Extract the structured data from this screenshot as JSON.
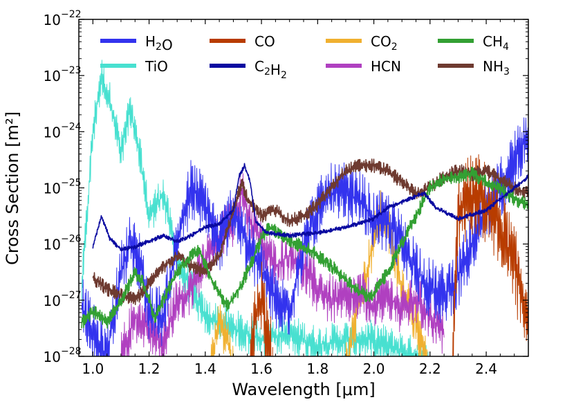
{
  "chart_data": {
    "type": "line",
    "xlabel": "Wavelength [μm]",
    "ylabel": "Cross Section [m²]",
    "xlim": [
      0.95,
      2.55
    ],
    "ylim_log10": [
      -28,
      -22
    ],
    "x_ticks": [
      1.0,
      1.2,
      1.4,
      1.6,
      1.8,
      2.0,
      2.2,
      2.4
    ],
    "x_tick_labels": [
      "1.0",
      "1.2",
      "1.4",
      "1.6",
      "1.8",
      "2.0",
      "2.2",
      "2.4"
    ],
    "y_ticks": [
      {
        "base": "10",
        "exp": "−28"
      },
      {
        "base": "10",
        "exp": "−27"
      },
      {
        "base": "10",
        "exp": "−26"
      },
      {
        "base": "10",
        "exp": "−25"
      },
      {
        "base": "10",
        "exp": "−24"
      },
      {
        "base": "10",
        "exp": "−23"
      },
      {
        "base": "10",
        "exp": "−22"
      }
    ],
    "legend_position": "top",
    "series": [
      {
        "name": "H2O",
        "label_main": "H",
        "label_sub": "2",
        "label_tail": "O",
        "color": "#3333ee",
        "noise": 1.1,
        "points": [
          [
            0.96,
            -27.1
          ],
          [
            1.0,
            -27.6
          ],
          [
            1.05,
            -28.0
          ],
          [
            1.1,
            -26.5
          ],
          [
            1.13,
            -26.0
          ],
          [
            1.17,
            -26.3
          ],
          [
            1.2,
            -27.2
          ],
          [
            1.25,
            -27.3
          ],
          [
            1.3,
            -26.0
          ],
          [
            1.35,
            -25.0
          ],
          [
            1.4,
            -25.3
          ],
          [
            1.45,
            -26.0
          ],
          [
            1.5,
            -25.4
          ],
          [
            1.55,
            -26.0
          ],
          [
            1.6,
            -26.5
          ],
          [
            1.65,
            -27.0
          ],
          [
            1.7,
            -27.2
          ],
          [
            1.75,
            -26.0
          ],
          [
            1.8,
            -25.4
          ],
          [
            1.85,
            -25.1
          ],
          [
            1.9,
            -25.1
          ],
          [
            1.95,
            -25.2
          ],
          [
            2.0,
            -25.6
          ],
          [
            2.05,
            -25.6
          ],
          [
            2.1,
            -26.0
          ],
          [
            2.15,
            -26.4
          ],
          [
            2.2,
            -26.8
          ],
          [
            2.25,
            -26.9
          ],
          [
            2.3,
            -26.6
          ],
          [
            2.35,
            -26.0
          ],
          [
            2.4,
            -25.5
          ],
          [
            2.45,
            -25.0
          ],
          [
            2.5,
            -24.5
          ],
          [
            2.55,
            -24.0
          ]
        ]
      },
      {
        "name": "TiO",
        "label_main": "TiO",
        "label_sub": "",
        "label_tail": "",
        "color": "#48e0d0",
        "noise": 0.7,
        "points": [
          [
            0.96,
            -26.8
          ],
          [
            1.0,
            -24.0
          ],
          [
            1.03,
            -23.0
          ],
          [
            1.07,
            -23.6
          ],
          [
            1.1,
            -24.4
          ],
          [
            1.13,
            -23.6
          ],
          [
            1.17,
            -24.5
          ],
          [
            1.2,
            -25.5
          ],
          [
            1.25,
            -25.1
          ],
          [
            1.3,
            -26.3
          ],
          [
            1.35,
            -26.8
          ],
          [
            1.4,
            -27.3
          ],
          [
            1.5,
            -27.5
          ],
          [
            1.6,
            -27.7
          ],
          [
            1.7,
            -27.6
          ],
          [
            1.8,
            -27.8
          ],
          [
            1.9,
            -27.7
          ],
          [
            2.0,
            -27.7
          ],
          [
            2.1,
            -27.9
          ],
          [
            2.2,
            -28.1
          ]
        ]
      },
      {
        "name": "CO",
        "label_main": "CO",
        "label_sub": "",
        "label_tail": "",
        "color": "#b83c00",
        "noise": 1.5,
        "points": [
          [
            1.56,
            -28.2
          ],
          [
            1.58,
            -27.3
          ],
          [
            1.6,
            -27.0
          ],
          [
            1.62,
            -27.6
          ],
          [
            1.64,
            -28.2
          ]
        ],
        "segment2": [
          [
            2.28,
            -28.2
          ],
          [
            2.3,
            -25.4
          ],
          [
            2.33,
            -25.2
          ],
          [
            2.37,
            -25.1
          ],
          [
            2.4,
            -25.3
          ],
          [
            2.43,
            -25.5
          ],
          [
            2.46,
            -25.8
          ],
          [
            2.5,
            -26.4
          ],
          [
            2.53,
            -27.0
          ],
          [
            2.55,
            -27.3
          ]
        ]
      },
      {
        "name": "C2H2",
        "label_main": "C",
        "label_sub": "2",
        "label_tail": "H",
        "label_sub2": "2",
        "color": "#0a0aa0",
        "noise": 0.08,
        "points": [
          [
            1.0,
            -26.05
          ],
          [
            1.03,
            -25.5
          ],
          [
            1.06,
            -25.9
          ],
          [
            1.1,
            -26.1
          ],
          [
            1.15,
            -26.05
          ],
          [
            1.2,
            -25.95
          ],
          [
            1.25,
            -25.85
          ],
          [
            1.3,
            -25.95
          ],
          [
            1.35,
            -25.85
          ],
          [
            1.4,
            -25.7
          ],
          [
            1.45,
            -25.65
          ],
          [
            1.5,
            -25.4
          ],
          [
            1.52,
            -24.8
          ],
          [
            1.54,
            -24.6
          ],
          [
            1.56,
            -24.9
          ],
          [
            1.58,
            -25.6
          ],
          [
            1.62,
            -25.8
          ],
          [
            1.7,
            -25.85
          ],
          [
            1.8,
            -25.8
          ],
          [
            1.9,
            -25.7
          ],
          [
            2.0,
            -25.55
          ],
          [
            2.05,
            -25.35
          ],
          [
            2.1,
            -25.25
          ],
          [
            2.15,
            -25.15
          ],
          [
            2.18,
            -25.1
          ],
          [
            2.22,
            -25.35
          ],
          [
            2.3,
            -25.55
          ],
          [
            2.4,
            -25.4
          ],
          [
            2.45,
            -25.2
          ],
          [
            2.5,
            -25.0
          ],
          [
            2.55,
            -24.8
          ]
        ]
      },
      {
        "name": "CO2",
        "label_main": "CO",
        "label_sub": "2",
        "label_tail": "",
        "color": "#f0b030",
        "noise": 0.9,
        "points": [
          [
            1.42,
            -28.2
          ],
          [
            1.45,
            -27.3
          ],
          [
            1.48,
            -27.8
          ],
          [
            1.5,
            -28.2
          ]
        ],
        "segment2": [
          [
            1.9,
            -28.2
          ],
          [
            1.95,
            -27.0
          ],
          [
            1.98,
            -26.4
          ],
          [
            2.0,
            -25.9
          ],
          [
            2.03,
            -25.4
          ],
          [
            2.06,
            -25.9
          ],
          [
            2.09,
            -26.6
          ],
          [
            2.12,
            -27.0
          ],
          [
            2.15,
            -27.4
          ],
          [
            2.19,
            -28.2
          ]
        ]
      },
      {
        "name": "HCN",
        "label_main": "HCN",
        "label_sub": "",
        "label_tail": "",
        "color": "#b040c0",
        "noise": 0.9,
        "points": [
          [
            1.1,
            -28.0
          ],
          [
            1.15,
            -27.3
          ],
          [
            1.2,
            -27.5
          ],
          [
            1.25,
            -27.8
          ],
          [
            1.3,
            -27.0
          ],
          [
            1.35,
            -26.8
          ],
          [
            1.4,
            -26.3
          ],
          [
            1.45,
            -25.9
          ],
          [
            1.5,
            -25.6
          ],
          [
            1.53,
            -25.1
          ],
          [
            1.56,
            -25.6
          ],
          [
            1.6,
            -26.0
          ],
          [
            1.65,
            -26.4
          ],
          [
            1.7,
            -26.2
          ],
          [
            1.75,
            -26.4
          ],
          [
            1.8,
            -26.8
          ],
          [
            1.85,
            -27.0
          ],
          [
            1.9,
            -27.0
          ],
          [
            1.95,
            -26.9
          ],
          [
            2.0,
            -27.1
          ],
          [
            2.05,
            -26.9
          ],
          [
            2.1,
            -27.2
          ],
          [
            2.15,
            -27.0
          ],
          [
            2.2,
            -27.3
          ],
          [
            2.25,
            -27.6
          ]
        ]
      },
      {
        "name": "CH4",
        "label_main": "CH",
        "label_sub": "4",
        "label_tail": "",
        "color": "#33a033",
        "noise": 0.25,
        "points": [
          [
            0.96,
            -27.4
          ],
          [
            1.0,
            -27.2
          ],
          [
            1.05,
            -27.4
          ],
          [
            1.1,
            -27.0
          ],
          [
            1.15,
            -26.5
          ],
          [
            1.18,
            -26.7
          ],
          [
            1.22,
            -27.3
          ],
          [
            1.25,
            -27.0
          ],
          [
            1.3,
            -26.5
          ],
          [
            1.35,
            -26.2
          ],
          [
            1.38,
            -26.1
          ],
          [
            1.42,
            -26.6
          ],
          [
            1.45,
            -26.9
          ],
          [
            1.48,
            -27.1
          ],
          [
            1.52,
            -26.8
          ],
          [
            1.56,
            -26.4
          ],
          [
            1.6,
            -25.9
          ],
          [
            1.63,
            -25.7
          ],
          [
            1.66,
            -25.8
          ],
          [
            1.7,
            -25.95
          ],
          [
            1.75,
            -26.05
          ],
          [
            1.8,
            -26.2
          ],
          [
            1.85,
            -26.4
          ],
          [
            1.9,
            -26.65
          ],
          [
            1.95,
            -26.85
          ],
          [
            1.99,
            -26.95
          ],
          [
            2.05,
            -26.5
          ],
          [
            2.1,
            -26.0
          ],
          [
            2.15,
            -25.5
          ],
          [
            2.2,
            -25.0
          ],
          [
            2.25,
            -24.85
          ],
          [
            2.3,
            -24.8
          ],
          [
            2.35,
            -24.75
          ],
          [
            2.4,
            -24.9
          ],
          [
            2.45,
            -25.0
          ],
          [
            2.5,
            -25.2
          ],
          [
            2.55,
            -25.3
          ]
        ]
      },
      {
        "name": "NH3",
        "label_main": "NH",
        "label_sub": "3",
        "label_tail": "",
        "color": "#6e3a30",
        "noise": 0.25,
        "points": [
          [
            1.0,
            -26.6
          ],
          [
            1.05,
            -26.8
          ],
          [
            1.1,
            -26.9
          ],
          [
            1.15,
            -27.0
          ],
          [
            1.2,
            -26.7
          ],
          [
            1.25,
            -26.4
          ],
          [
            1.3,
            -26.2
          ],
          [
            1.35,
            -26.4
          ],
          [
            1.4,
            -26.5
          ],
          [
            1.45,
            -26.2
          ],
          [
            1.5,
            -25.4
          ],
          [
            1.53,
            -24.9
          ],
          [
            1.55,
            -25.2
          ],
          [
            1.6,
            -25.5
          ],
          [
            1.65,
            -25.4
          ],
          [
            1.7,
            -25.6
          ],
          [
            1.75,
            -25.5
          ],
          [
            1.8,
            -25.3
          ],
          [
            1.85,
            -25.0
          ],
          [
            1.9,
            -24.7
          ],
          [
            1.95,
            -24.6
          ],
          [
            2.0,
            -24.6
          ],
          [
            2.05,
            -24.7
          ],
          [
            2.1,
            -24.9
          ],
          [
            2.15,
            -25.1
          ],
          [
            2.2,
            -25.0
          ],
          [
            2.25,
            -24.8
          ],
          [
            2.3,
            -24.7
          ],
          [
            2.35,
            -24.75
          ],
          [
            2.4,
            -24.7
          ],
          [
            2.45,
            -24.85
          ],
          [
            2.5,
            -25.0
          ],
          [
            2.55,
            -25.1
          ]
        ]
      }
    ]
  }
}
